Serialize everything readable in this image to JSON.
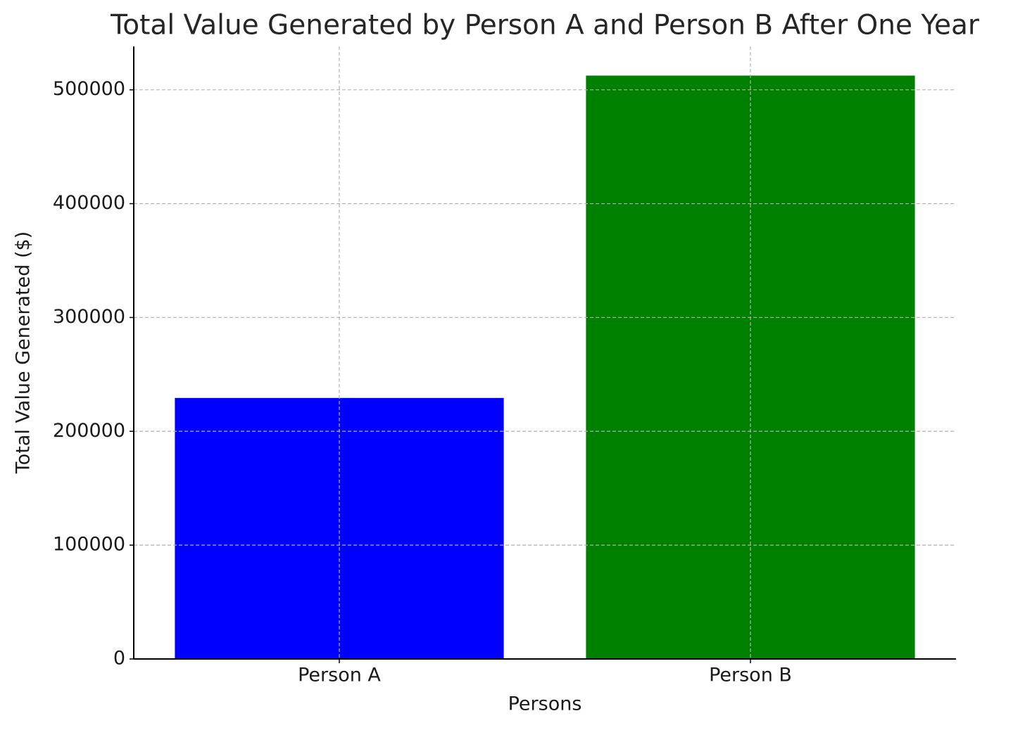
{
  "chart_data": {
    "type": "bar",
    "title": "Total Value Generated by Person A and Person B After One Year",
    "x_label": "Persons",
    "y_label": "Total Value Generated ($)",
    "categories": [
      "Person A",
      "Person B"
    ],
    "values": [
      229300,
      512500
    ],
    "colors": [
      "#0000ff",
      "#008000"
    ],
    "ylim": [
      0,
      538125
    ],
    "yticks": [
      0,
      100000,
      200000,
      300000,
      400000,
      500000
    ],
    "grid": true
  }
}
